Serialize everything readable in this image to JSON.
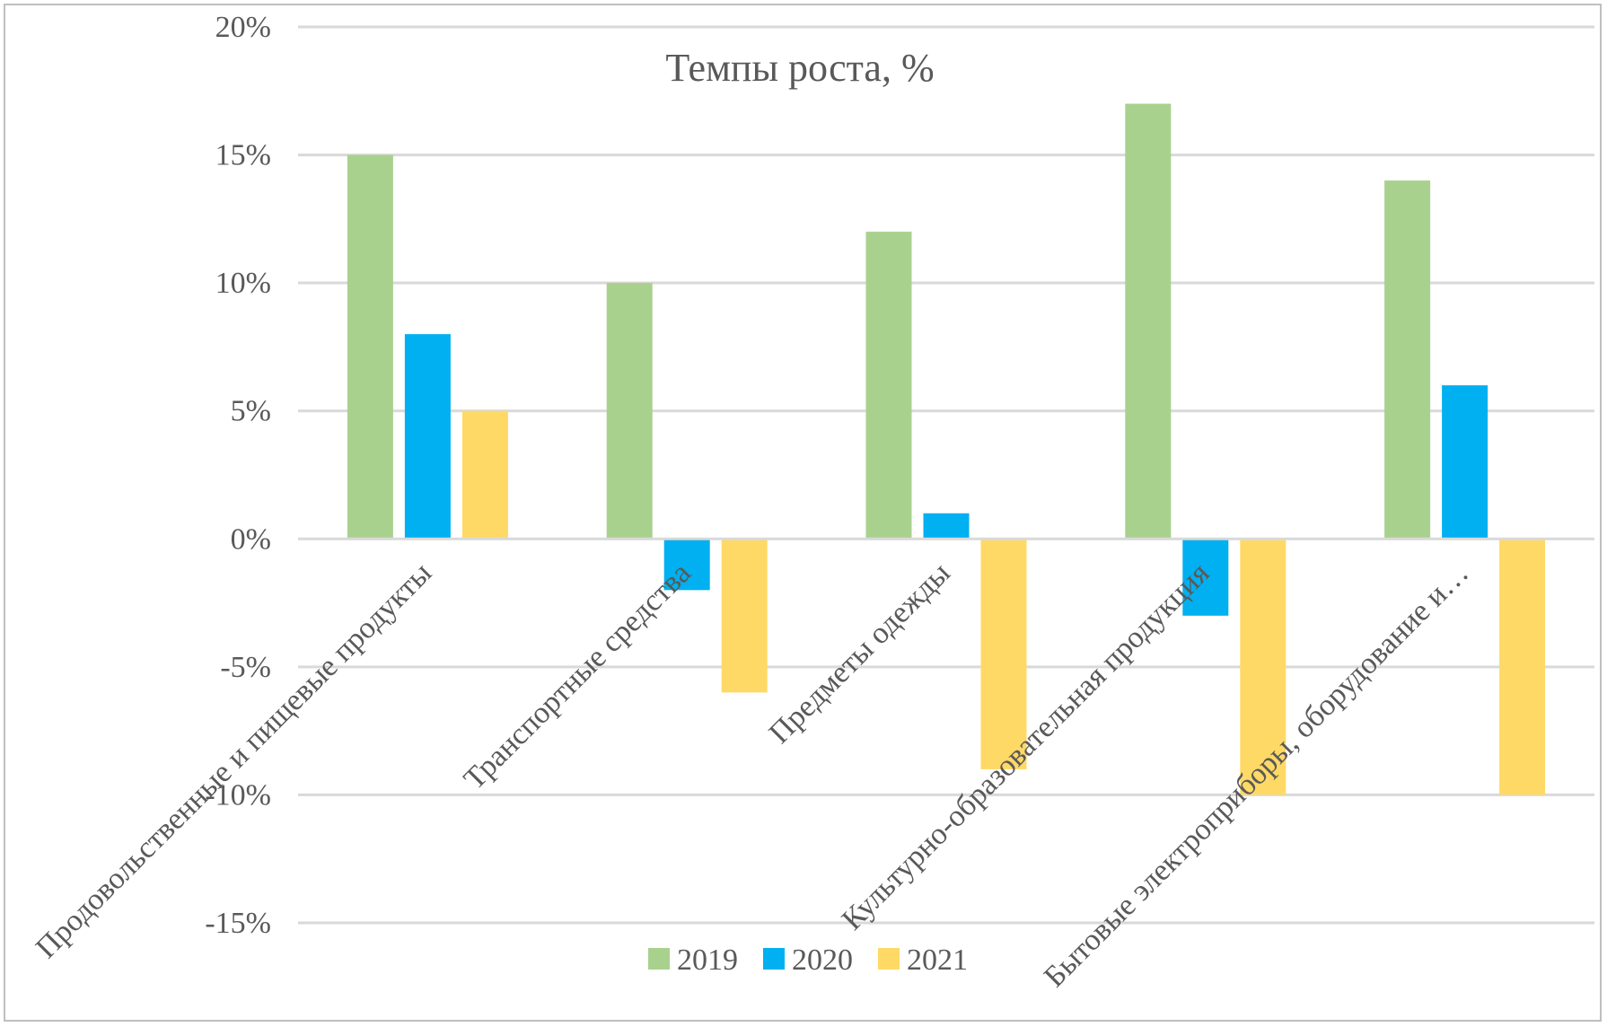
{
  "chart_data": {
    "type": "bar",
    "title": "Темпы роста, %",
    "xlabel": "",
    "ylabel": "",
    "ylim": [
      -15,
      20
    ],
    "y_ticks": [
      20,
      15,
      10,
      5,
      0,
      -5,
      -10,
      -15
    ],
    "y_tick_labels": [
      "20%",
      "15%",
      "10%",
      "5%",
      "0%",
      "-5%",
      "-10%",
      "-15%"
    ],
    "grid": true,
    "legend_position": "bottom",
    "categories": [
      "Продовольственные и пищевые продукты",
      "Транспортные средства",
      "Предметы одежды",
      "Культурно-образовательная продукция",
      "Бытовые электроприборы, оборудование и…"
    ],
    "series": [
      {
        "name": "2019",
        "color": "#a9d18e",
        "values": [
          15,
          10,
          12,
          17,
          14
        ]
      },
      {
        "name": "2020",
        "color": "#00b0f0",
        "values": [
          8,
          -2,
          1,
          -3,
          6
        ]
      },
      {
        "name": "2021",
        "color": "#ffd966",
        "values": [
          5,
          -6,
          -9,
          -10,
          -10
        ]
      }
    ]
  }
}
